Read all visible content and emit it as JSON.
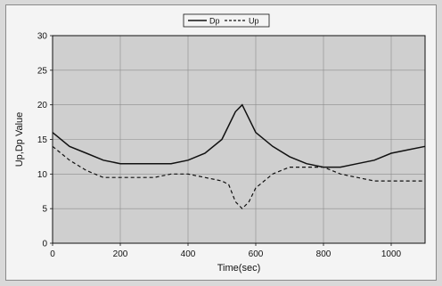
{
  "chart_data": {
    "type": "line",
    "title": "",
    "xlabel": "Time(sec)",
    "ylabel": "Up,Dp Value",
    "xlim": [
      0,
      1100
    ],
    "ylim": [
      0,
      30
    ],
    "xticks": [
      0,
      200,
      400,
      600,
      800,
      1000
    ],
    "yticks": [
      0,
      5,
      10,
      15,
      20,
      25,
      30
    ],
    "grid": true,
    "legend_position": "top-center",
    "series": [
      {
        "name": "Dp",
        "style": "solid",
        "color": "#111111",
        "x": [
          0,
          50,
          100,
          150,
          200,
          250,
          300,
          350,
          400,
          450,
          500,
          520,
          540,
          560,
          580,
          600,
          650,
          700,
          750,
          800,
          850,
          900,
          950,
          1000,
          1050,
          1100
        ],
        "y": [
          16,
          14,
          13,
          12,
          11.5,
          11.5,
          11.5,
          11.5,
          12,
          13,
          15,
          17,
          19,
          20,
          18,
          16,
          14,
          12.5,
          11.5,
          11,
          11,
          11.5,
          12,
          13,
          13.5,
          14
        ]
      },
      {
        "name": "Up",
        "style": "dashed",
        "color": "#111111",
        "x": [
          0,
          50,
          100,
          150,
          200,
          250,
          300,
          350,
          400,
          450,
          500,
          520,
          540,
          560,
          580,
          600,
          650,
          700,
          750,
          800,
          850,
          900,
          950,
          1000,
          1050,
          1100
        ],
        "y": [
          14,
          12,
          10.5,
          9.5,
          9.5,
          9.5,
          9.5,
          10,
          10,
          9.5,
          9,
          8.5,
          6,
          5,
          6,
          8,
          10,
          11,
          11,
          11,
          10,
          9.5,
          9,
          9,
          9,
          9
        ]
      }
    ]
  }
}
